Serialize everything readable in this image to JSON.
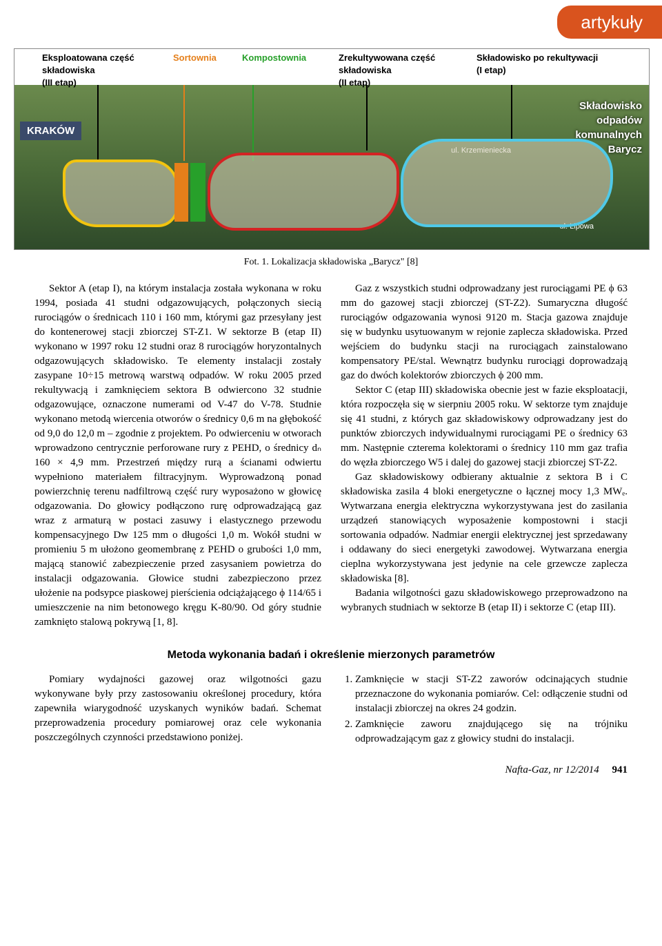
{
  "tab_label": "artykuły",
  "figure": {
    "labels": {
      "l1": "Eksploatowana część\nskładowiska\n(III etap)",
      "l2": "Sortownia",
      "l3": "Kompostownia",
      "l4": "Zrekultywowana część\nskładowiska\n(II etap)",
      "l5": "Składowisko po rekultywacji\n(I etap)"
    },
    "site_label": "Składowisko\nodpadów\nkomunalnych\nBarycz",
    "city": "KRAKÓW",
    "street1": "ul. Krzemieniecka",
    "street2": "ul. Lipowa",
    "caption": "Fot. 1. Lokalizacja składowiska „Barycz\" [8]"
  },
  "left_col": "Sektor A (etap I), na którym instalacja została wykonana w roku 1994, posiada 41 studni odgazowujących, połączonych siecią rurociągów o średnicach 110 i 160 mm, którymi gaz przesyłany jest do kontenerowej stacji zbiorczej ST-Z1. W sektorze B (etap II) wykonano w 1997 roku 12 studni oraz 8 rurociągów horyzontalnych odgazowujących składowisko. Te elementy instalacji zostały zasypane 10÷15 metrową warstwą odpadów. W roku 2005 przed rekultywacją i zamknięciem sektora B odwiercono 32 studnie odgazowujące, oznaczone numerami od V-47 do V-78. Studnie wykonano metodą wiercenia otworów o średnicy 0,6 m na głębokość od 9,0 do 12,0 m – zgodnie z projektem. Po odwierceniu w otworach wprowadzono centrycznie perforowane rury z PEHD, o średnicy dₙ 160 × 4,9 mm. Przestrzeń między rurą a ścianami odwiertu wypełniono materiałem filtracyjnym. Wyprowadzoną ponad powierzchnię terenu nadfiltrową część rury wyposażono w głowicę odgazowania. Do głowicy podłączono rurę odprowadzającą gaz wraz z armaturą w postaci zasuwy i elastycznego przewodu kompensacyjnego Dw 125 mm o długości 1,0 m. Wokół studni w promieniu 5 m ułożono geomembranę z PEHD o grubości 1,0 mm, mającą stanowić zabezpieczenie przed zasysaniem powietrza do instalacji odgazowania. Głowice studni zabezpieczono przez ułożenie na podsypce piaskowej pierścienia odciążającego ϕ 114/65 i umieszczenie na nim betonowego kręgu K-80/90. Od góry studnie zamknięto stalową pokrywą [1, 8].",
  "right_p1": "Gaz z wszystkich studni odprowadzany jest rurociągami PE ϕ 63 mm do gazowej stacji zbiorczej (ST-Z2). Sumaryczna długość rurociągów odgazowania wynosi 9120 m. Stacja gazowa znajduje się w budynku usytuowanym w rejonie zaplecza składowiska. Przed wejściem do budynku stacji na rurociągach zainstalowano kompensatory PE/stal. Wewnątrz budynku rurociągi doprowadzają gaz do dwóch kolektorów zbiorczych ϕ 200 mm.",
  "right_p2": "Sektor C (etap III) składowiska obecnie jest w fazie eksploatacji, która rozpoczęła się w sierpniu 2005 roku. W sektorze tym znajduje się 41 studni, z których gaz składowiskowy odprowadzany jest do punktów zbiorczych indywidualnymi rurociągami PE o średnicy 63 mm. Następnie czterema kolektorami o średnicy 110 mm gaz trafia do węzła zbiorczego W5 i dalej do gazowej stacji zbiorczej ST-Z2.",
  "right_p3": "Gaz składowiskowy odbierany aktualnie z sektora B i C składowiska zasila 4 bloki energetyczne o łącznej mocy 1,3 MWₑ. Wytwarzana energia elektryczna wykorzystywana jest do zasilania urządzeń stanowiących wyposażenie kompostowni i stacji sortowania odpadów. Nadmiar energii elektrycznej jest sprzedawany i oddawany do sieci energetyki zawodowej. Wytwarzana energia cieplna wykorzystywana jest jedynie na cele grzewcze zaplecza składowiska [8].",
  "right_p4": "Badania wilgotności gazu składowiskowego przeprowadzono na wybranych studniach w sektorze B (etap II) i sektorze C (etap III).",
  "section_heading": "Metoda wykonania badań i określenie mierzonych parametrów",
  "method_left": "Pomiary wydajności gazowej oraz wilgotności gazu wykonywane były przy zastosowaniu określonej procedury, która zapewniła wiarygodność uzyskanych wyników badań. Schemat przeprowadzenia procedury pomiarowej oraz cele wykonania poszczególnych czynności przedstawiono poniżej.",
  "method_list": [
    "Zamknięcie w stacji ST-Z2 zaworów odcinających studnie przeznaczone do wykonania pomiarów. Cel: odłączenie studni od instalacji zbiorczej na okres 24 godzin.",
    "Zamknięcie zaworu znajdującego się na trójniku odprowadzającym gaz z głowicy studni do instalacji."
  ],
  "footer": {
    "journal": "Nafta-Gaz, nr 12/2014",
    "page": "941"
  }
}
